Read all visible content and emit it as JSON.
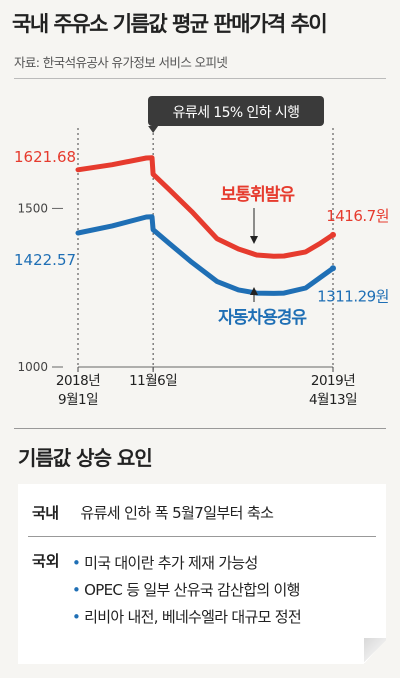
{
  "title": "국내 주유소 기름값 평균 판매가격 추이",
  "source": "자료: 한국석유공사 유가정보 서비스 오피넷",
  "chart_data": {
    "type": "line",
    "x": [
      "2018-09-01",
      "2018-10-01",
      "2018-10-31",
      "2018-11-05",
      "2018-11-06",
      "2018-11-20",
      "2018-12-10",
      "2019-01-01",
      "2019-01-20",
      "2019-02-05",
      "2019-02-20",
      "2019-03-01",
      "2019-03-20",
      "2019-04-01",
      "2019-04-13"
    ],
    "series": [
      {
        "name": "보통휘발유",
        "color": "#e63b2e",
        "values": [
          1621.68,
          1638,
          1659,
          1660,
          1608,
          1560,
          1490,
          1405,
          1372,
          1353,
          1349,
          1350,
          1363,
          1388,
          1416.7
        ]
      },
      {
        "name": "자동차용경유",
        "color": "#1f6fb5",
        "values": [
          1422.57,
          1445,
          1473,
          1474,
          1433,
          1390,
          1330,
          1270,
          1243,
          1233,
          1232,
          1233,
          1249,
          1280,
          1311.29
        ]
      }
    ],
    "ylim": [
      1000,
      1700
    ],
    "yticks": [
      "1500",
      "1000"
    ],
    "xtick_labels": [
      {
        "x": "2018-09-01",
        "lines": [
          "2018년",
          "9월1일"
        ]
      },
      {
        "x": "2018-11-06",
        "lines": [
          "11월6일"
        ]
      },
      {
        "x": "2019-04-13",
        "lines": [
          "2019년",
          "4월13일"
        ]
      }
    ],
    "start_labels": {
      "gasoline": "1621.68",
      "diesel": "1422.57"
    },
    "end_labels": {
      "gasoline": "1416.7원",
      "diesel": "1311.29원"
    },
    "callout": "유류세 15% 인하 시행",
    "series_labels": {
      "gasoline": "보통휘발유",
      "diesel": "자동차용경유"
    },
    "colors": {
      "gasoline": "#e63b2e",
      "diesel": "#1f6fb5",
      "callout_bg": "#3a3a3a"
    }
  },
  "factors": {
    "title": "기름값 상승 요인",
    "domestic": {
      "key": "국내",
      "text": "유류세 인하 폭 5월7일부터 축소"
    },
    "international": {
      "key": "국외",
      "items": [
        "미국 대이란 추가 제재 가능성",
        "OPEC 등 일부 산유국 감산합의 이행",
        "리비아 내전, 베네수엘라 대규모 정전"
      ]
    }
  },
  "icons": {
    "bullet": "•",
    "accent": "#1f6fb5"
  }
}
